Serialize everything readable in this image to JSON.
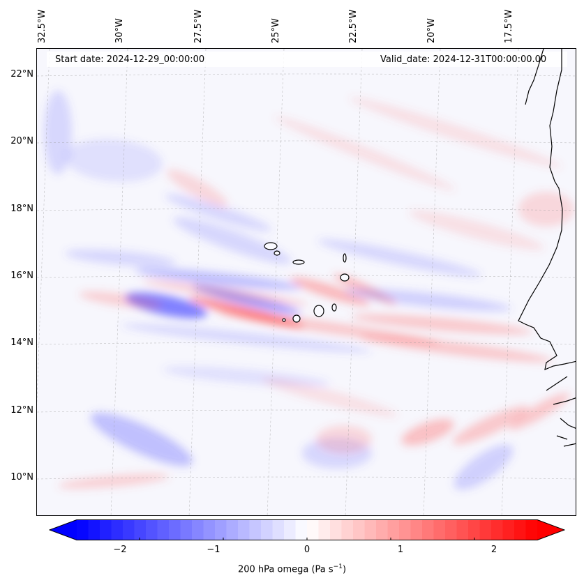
{
  "map": {
    "start_date": "Start date: 2024-12-29_00:00:00",
    "valid_date": "Valid_date: 2024-12-31T00:00:00.00",
    "lon_labels": [
      "32.5°W",
      "30°W",
      "27.5°W",
      "25°W",
      "22.5°W",
      "20°W",
      "17.5°W"
    ],
    "lat_labels": [
      "22°N",
      "20°N",
      "18°N",
      "16°N",
      "14°N",
      "12°N",
      "10°N"
    ],
    "field": "200 hPa omega",
    "region": {
      "lon_range": [
        -33.0,
        -15.5
      ],
      "lat_range": [
        8.8,
        22.8
      ]
    }
  },
  "colorbar": {
    "range": [
      -2.75,
      2.75
    ],
    "ticks": [
      "−2",
      "−1",
      "0",
      "1",
      "2"
    ],
    "tick_values": [
      -2,
      -1,
      0,
      1,
      2
    ],
    "label": "200 hPa omega (Pa s",
    "label_unit_power": "−1",
    "label_close": ")",
    "colors": {
      "low": "#0000ff",
      "mid": "#ffffff",
      "high": "#ff0000"
    }
  }
}
